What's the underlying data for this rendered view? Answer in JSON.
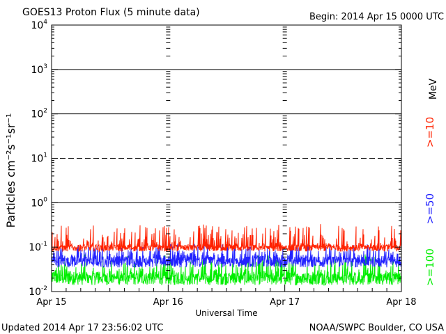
{
  "header": {
    "title": "GOES13 Proton Flux (5 minute data)",
    "begin": "Begin: 2014 Apr 15 0000 UTC"
  },
  "footer": {
    "updated": "Updated 2014 Apr 17 23:56:02 UTC",
    "credit": "NOAA/SWPC Boulder, CO USA"
  },
  "chart_data": {
    "type": "line",
    "title": "GOES13 Proton Flux (5 minute data)",
    "xlabel": "Universal Time",
    "ylabel": "Particles cm⁻²s⁻¹sr⁻¹",
    "y_scale": "log",
    "ylim": [
      0.01,
      10000
    ],
    "y_ticks": [
      {
        "value": 0.01,
        "base": "10",
        "exp": "-2"
      },
      {
        "value": 0.1,
        "base": "10",
        "exp": "-1"
      },
      {
        "value": 1,
        "base": "10",
        "exp": "0"
      },
      {
        "value": 10,
        "base": "10",
        "exp": "1"
      },
      {
        "value": 100,
        "base": "10",
        "exp": "2"
      },
      {
        "value": 1000,
        "base": "10",
        "exp": "3"
      },
      {
        "value": 10000,
        "base": "10",
        "exp": "4"
      }
    ],
    "x_ticks": [
      "Apr 15",
      "Apr 16",
      "Apr 17",
      "Apr 18"
    ],
    "xlim": [
      "2014-04-15",
      "2014-04-18"
    ],
    "threshold_lines": [
      {
        "value": 1,
        "style": "solid"
      },
      {
        "value": 10,
        "style": "dashed"
      },
      {
        "value": 100,
        "style": "solid"
      },
      {
        "value": 1000,
        "style": "solid"
      }
    ],
    "series": [
      {
        "name": ">=10",
        "unit": "MeV",
        "color": "#ff2200",
        "typical": 0.11,
        "range": [
          0.08,
          0.33
        ]
      },
      {
        "name": ">=50",
        "color": "#2222ff",
        "typical": 0.06,
        "range": [
          0.035,
          0.12
        ]
      },
      {
        "name": ">=100",
        "color": "#00ee00",
        "typical": 0.025,
        "range": [
          0.014,
          0.07
        ]
      }
    ],
    "grid": false,
    "legend_position": "right"
  }
}
